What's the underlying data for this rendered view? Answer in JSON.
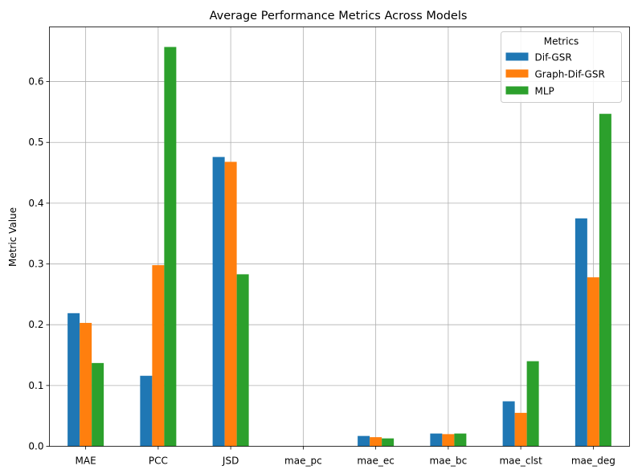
{
  "chart_data": {
    "type": "bar",
    "title": "Average Performance Metrics Across Models",
    "xlabel": "",
    "ylabel": "Metric Value",
    "categories": [
      "MAE",
      "PCC",
      "JSD",
      "mae_pc",
      "mae_ec",
      "mae_bc",
      "mae_clst",
      "mae_deg"
    ],
    "series": [
      {
        "name": "Dif-GSR",
        "color": "#1f77b4",
        "values": [
          0.219,
          0.116,
          0.476,
          0.0,
          0.017,
          0.021,
          0.074,
          0.375
        ]
      },
      {
        "name": "Graph-Dif-GSR",
        "color": "#ff7f0e",
        "values": [
          0.203,
          0.298,
          0.468,
          0.0,
          0.015,
          0.02,
          0.055,
          0.278
        ]
      },
      {
        "name": "MLP",
        "color": "#2ca02c",
        "values": [
          0.137,
          0.657,
          0.283,
          0.0,
          0.013,
          0.021,
          0.14,
          0.547
        ]
      }
    ],
    "ylim": [
      0,
      0.69
    ],
    "yticks": [
      0.0,
      0.1,
      0.2,
      0.3,
      0.4,
      0.5,
      0.6
    ],
    "ytick_labels": [
      "0.0",
      "0.1",
      "0.2",
      "0.3",
      "0.4",
      "0.5",
      "0.6"
    ],
    "grid": true,
    "legend": {
      "title": "Metrics",
      "placement": "upper right"
    }
  }
}
